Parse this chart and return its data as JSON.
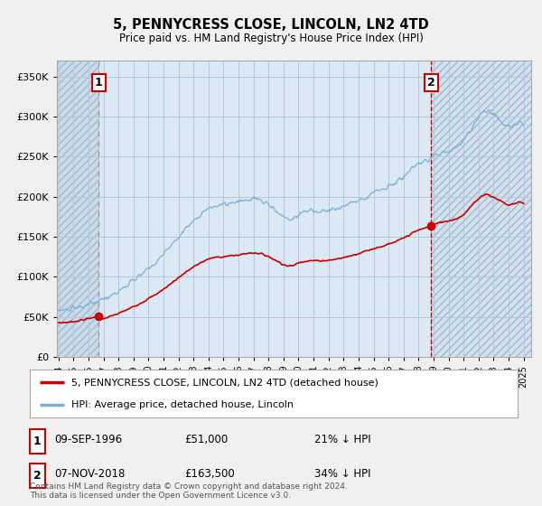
{
  "title": "5, PENNYCRESS CLOSE, LINCOLN, LN2 4TD",
  "subtitle": "Price paid vs. HM Land Registry's House Price Index (HPI)",
  "ylabel_ticks": [
    "£0",
    "£50K",
    "£100K",
    "£150K",
    "£200K",
    "£250K",
    "£300K",
    "£350K"
  ],
  "ytick_values": [
    0,
    50000,
    100000,
    150000,
    200000,
    250000,
    300000,
    350000
  ],
  "ylim": [
    0,
    370000
  ],
  "xlim_start": 1993.9,
  "xlim_end": 2025.5,
  "background_color": "#f0f0f0",
  "plot_bg_color": "#dce9f5",
  "hatch_region_end": 1996.69,
  "sale1_x": 1996.69,
  "sale1_y": 51000,
  "sale1_label": "1",
  "sale1_date": "09-SEP-1996",
  "sale1_price": "£51,000",
  "sale1_hpi": "21% ↓ HPI",
  "sale2_x": 2018.84,
  "sale2_y": 163500,
  "sale2_label": "2",
  "sale2_date": "07-NOV-2018",
  "sale2_price": "£163,500",
  "sale2_hpi": "34% ↓ HPI",
  "legend_line1": "5, PENNYCRESS CLOSE, LINCOLN, LN2 4TD (detached house)",
  "legend_line2": "HPI: Average price, detached house, Lincoln",
  "footer": "Contains HM Land Registry data © Crown copyright and database right 2024.\nThis data is licensed under the Open Government Licence v3.0.",
  "grid_color": "#b0c8e0",
  "hpi_color": "#7ab0d8",
  "price_color": "#cc0000",
  "sale1_vline_color": "#aaaaaa",
  "sale2_vline_color": "#cc0000",
  "hatch_color": "#c8c8c8"
}
